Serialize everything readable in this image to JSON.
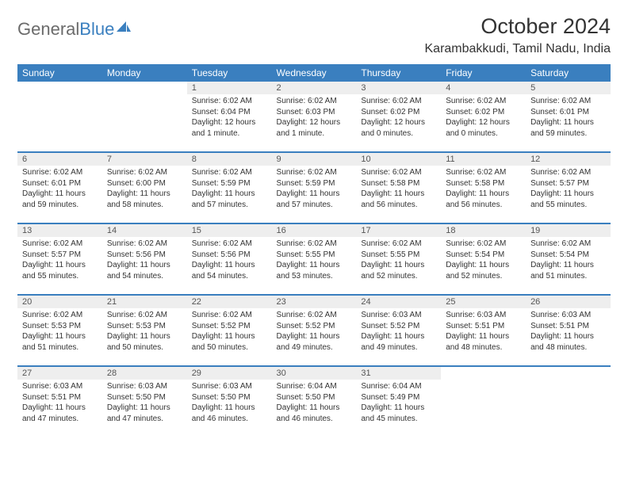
{
  "logo": {
    "text1": "General",
    "text2": "Blue"
  },
  "title": "October 2024",
  "location": "Karambakkudi, Tamil Nadu, India",
  "colors": {
    "header_bg": "#3a7fbf",
    "header_fg": "#ffffff",
    "daynum_bg": "#eeeeee",
    "daynum_fg": "#555555",
    "body_text": "#333333",
    "divider": "#3a7fbf",
    "logo_gray": "#6b6b6b",
    "logo_blue": "#3a7fbf",
    "page_bg": "#ffffff"
  },
  "typography": {
    "title_fontsize": 27,
    "location_fontsize": 16,
    "daynum_fontsize": 11,
    "body_fontsize": 10,
    "weekday_fontsize": 12
  },
  "weekdays": [
    "Sunday",
    "Monday",
    "Tuesday",
    "Wednesday",
    "Thursday",
    "Friday",
    "Saturday"
  ],
  "weeks": [
    [
      {
        "empty": true
      },
      {
        "empty": true
      },
      {
        "day": "1",
        "sunrise": "Sunrise: 6:02 AM",
        "sunset": "Sunset: 6:04 PM",
        "daylight": "Daylight: 12 hours and 1 minute."
      },
      {
        "day": "2",
        "sunrise": "Sunrise: 6:02 AM",
        "sunset": "Sunset: 6:03 PM",
        "daylight": "Daylight: 12 hours and 1 minute."
      },
      {
        "day": "3",
        "sunrise": "Sunrise: 6:02 AM",
        "sunset": "Sunset: 6:02 PM",
        "daylight": "Daylight: 12 hours and 0 minutes."
      },
      {
        "day": "4",
        "sunrise": "Sunrise: 6:02 AM",
        "sunset": "Sunset: 6:02 PM",
        "daylight": "Daylight: 12 hours and 0 minutes."
      },
      {
        "day": "5",
        "sunrise": "Sunrise: 6:02 AM",
        "sunset": "Sunset: 6:01 PM",
        "daylight": "Daylight: 11 hours and 59 minutes."
      }
    ],
    [
      {
        "day": "6",
        "sunrise": "Sunrise: 6:02 AM",
        "sunset": "Sunset: 6:01 PM",
        "daylight": "Daylight: 11 hours and 59 minutes."
      },
      {
        "day": "7",
        "sunrise": "Sunrise: 6:02 AM",
        "sunset": "Sunset: 6:00 PM",
        "daylight": "Daylight: 11 hours and 58 minutes."
      },
      {
        "day": "8",
        "sunrise": "Sunrise: 6:02 AM",
        "sunset": "Sunset: 5:59 PM",
        "daylight": "Daylight: 11 hours and 57 minutes."
      },
      {
        "day": "9",
        "sunrise": "Sunrise: 6:02 AM",
        "sunset": "Sunset: 5:59 PM",
        "daylight": "Daylight: 11 hours and 57 minutes."
      },
      {
        "day": "10",
        "sunrise": "Sunrise: 6:02 AM",
        "sunset": "Sunset: 5:58 PM",
        "daylight": "Daylight: 11 hours and 56 minutes."
      },
      {
        "day": "11",
        "sunrise": "Sunrise: 6:02 AM",
        "sunset": "Sunset: 5:58 PM",
        "daylight": "Daylight: 11 hours and 56 minutes."
      },
      {
        "day": "12",
        "sunrise": "Sunrise: 6:02 AM",
        "sunset": "Sunset: 5:57 PM",
        "daylight": "Daylight: 11 hours and 55 minutes."
      }
    ],
    [
      {
        "day": "13",
        "sunrise": "Sunrise: 6:02 AM",
        "sunset": "Sunset: 5:57 PM",
        "daylight": "Daylight: 11 hours and 55 minutes."
      },
      {
        "day": "14",
        "sunrise": "Sunrise: 6:02 AM",
        "sunset": "Sunset: 5:56 PM",
        "daylight": "Daylight: 11 hours and 54 minutes."
      },
      {
        "day": "15",
        "sunrise": "Sunrise: 6:02 AM",
        "sunset": "Sunset: 5:56 PM",
        "daylight": "Daylight: 11 hours and 54 minutes."
      },
      {
        "day": "16",
        "sunrise": "Sunrise: 6:02 AM",
        "sunset": "Sunset: 5:55 PM",
        "daylight": "Daylight: 11 hours and 53 minutes."
      },
      {
        "day": "17",
        "sunrise": "Sunrise: 6:02 AM",
        "sunset": "Sunset: 5:55 PM",
        "daylight": "Daylight: 11 hours and 52 minutes."
      },
      {
        "day": "18",
        "sunrise": "Sunrise: 6:02 AM",
        "sunset": "Sunset: 5:54 PM",
        "daylight": "Daylight: 11 hours and 52 minutes."
      },
      {
        "day": "19",
        "sunrise": "Sunrise: 6:02 AM",
        "sunset": "Sunset: 5:54 PM",
        "daylight": "Daylight: 11 hours and 51 minutes."
      }
    ],
    [
      {
        "day": "20",
        "sunrise": "Sunrise: 6:02 AM",
        "sunset": "Sunset: 5:53 PM",
        "daylight": "Daylight: 11 hours and 51 minutes."
      },
      {
        "day": "21",
        "sunrise": "Sunrise: 6:02 AM",
        "sunset": "Sunset: 5:53 PM",
        "daylight": "Daylight: 11 hours and 50 minutes."
      },
      {
        "day": "22",
        "sunrise": "Sunrise: 6:02 AM",
        "sunset": "Sunset: 5:52 PM",
        "daylight": "Daylight: 11 hours and 50 minutes."
      },
      {
        "day": "23",
        "sunrise": "Sunrise: 6:02 AM",
        "sunset": "Sunset: 5:52 PM",
        "daylight": "Daylight: 11 hours and 49 minutes."
      },
      {
        "day": "24",
        "sunrise": "Sunrise: 6:03 AM",
        "sunset": "Sunset: 5:52 PM",
        "daylight": "Daylight: 11 hours and 49 minutes."
      },
      {
        "day": "25",
        "sunrise": "Sunrise: 6:03 AM",
        "sunset": "Sunset: 5:51 PM",
        "daylight": "Daylight: 11 hours and 48 minutes."
      },
      {
        "day": "26",
        "sunrise": "Sunrise: 6:03 AM",
        "sunset": "Sunset: 5:51 PM",
        "daylight": "Daylight: 11 hours and 48 minutes."
      }
    ],
    [
      {
        "day": "27",
        "sunrise": "Sunrise: 6:03 AM",
        "sunset": "Sunset: 5:51 PM",
        "daylight": "Daylight: 11 hours and 47 minutes."
      },
      {
        "day": "28",
        "sunrise": "Sunrise: 6:03 AM",
        "sunset": "Sunset: 5:50 PM",
        "daylight": "Daylight: 11 hours and 47 minutes."
      },
      {
        "day": "29",
        "sunrise": "Sunrise: 6:03 AM",
        "sunset": "Sunset: 5:50 PM",
        "daylight": "Daylight: 11 hours and 46 minutes."
      },
      {
        "day": "30",
        "sunrise": "Sunrise: 6:04 AM",
        "sunset": "Sunset: 5:50 PM",
        "daylight": "Daylight: 11 hours and 46 minutes."
      },
      {
        "day": "31",
        "sunrise": "Sunrise: 6:04 AM",
        "sunset": "Sunset: 5:49 PM",
        "daylight": "Daylight: 11 hours and 45 minutes."
      },
      {
        "empty": true
      },
      {
        "empty": true
      }
    ]
  ]
}
